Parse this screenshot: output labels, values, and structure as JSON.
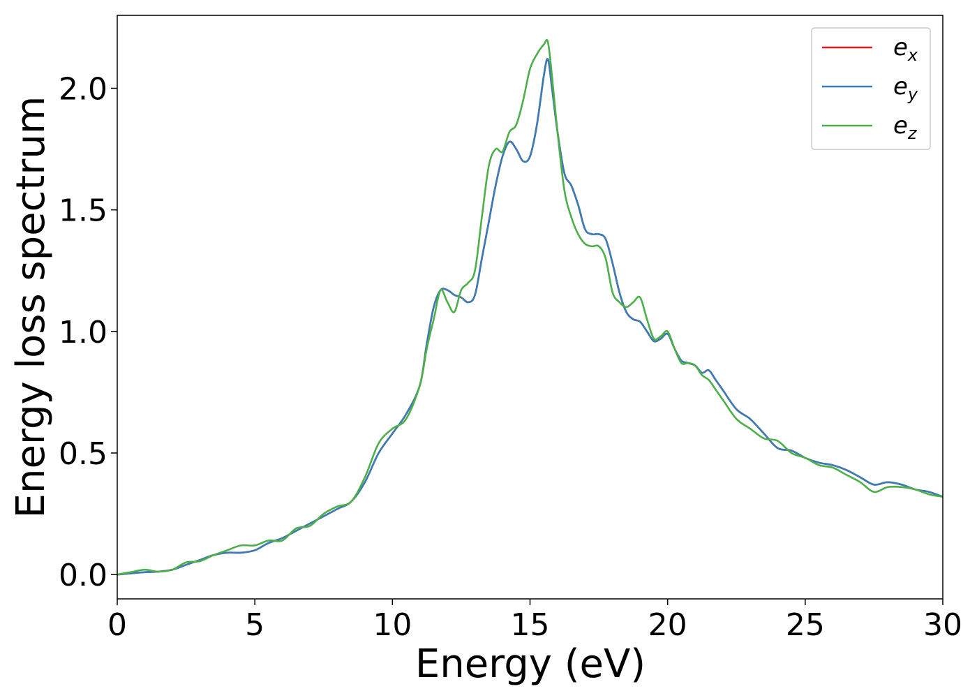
{
  "chart_data": {
    "type": "line",
    "title": "",
    "xlabel": "Energy (eV)",
    "ylabel": "Energy loss spectrum",
    "xlim": [
      0,
      30
    ],
    "ylim": [
      -0.1,
      2.3
    ],
    "x_ticks": [
      0,
      5,
      10,
      15,
      20,
      25,
      30
    ],
    "x_tick_labels": [
      "0",
      "5",
      "10",
      "15",
      "20",
      "25",
      "30"
    ],
    "y_ticks": [
      0.0,
      0.5,
      1.0,
      1.5,
      2.0
    ],
    "y_tick_labels": [
      "0.0",
      "0.5",
      "1.0",
      "1.5",
      "2.0"
    ],
    "grid": false,
    "legend_position": "top-right",
    "x": [
      0,
      0.5,
      1,
      1.5,
      2,
      2.5,
      3,
      3.5,
      4,
      4.5,
      5,
      5.5,
      6,
      6.5,
      7,
      7.5,
      8,
      8.5,
      9,
      9.5,
      10,
      10.5,
      11,
      11.25,
      11.5,
      11.75,
      12,
      12.25,
      12.5,
      12.75,
      13,
      13.25,
      13.5,
      13.75,
      14,
      14.25,
      14.5,
      14.75,
      15,
      15.25,
      15.5,
      15.65,
      15.8,
      16,
      16.25,
      16.5,
      16.75,
      17,
      17.25,
      17.5,
      17.75,
      18,
      18.25,
      18.5,
      18.75,
      19,
      19.25,
      19.5,
      19.75,
      20,
      20.25,
      20.5,
      20.75,
      21,
      21.25,
      21.5,
      21.75,
      22,
      22.5,
      23,
      23.5,
      24,
      24.5,
      25,
      25.5,
      26,
      26.5,
      27,
      27.5,
      28,
      28.5,
      29,
      29.5,
      30
    ],
    "series": [
      {
        "name": "e_x",
        "label_base": "e",
        "label_sub": "x",
        "color": "#e41a1c",
        "values": [
          0.0,
          0.005,
          0.01,
          0.012,
          0.02,
          0.04,
          0.06,
          0.08,
          0.09,
          0.09,
          0.1,
          0.13,
          0.15,
          0.18,
          0.21,
          0.24,
          0.27,
          0.3,
          0.38,
          0.5,
          0.58,
          0.66,
          0.78,
          0.95,
          1.1,
          1.17,
          1.17,
          1.15,
          1.14,
          1.12,
          1.15,
          1.3,
          1.45,
          1.6,
          1.72,
          1.78,
          1.75,
          1.7,
          1.72,
          1.85,
          2.05,
          2.12,
          2.0,
          1.82,
          1.65,
          1.6,
          1.52,
          1.42,
          1.4,
          1.4,
          1.38,
          1.28,
          1.16,
          1.08,
          1.05,
          1.04,
          1.0,
          0.96,
          0.97,
          0.99,
          0.93,
          0.88,
          0.87,
          0.86,
          0.83,
          0.84,
          0.8,
          0.76,
          0.68,
          0.64,
          0.58,
          0.52,
          0.51,
          0.48,
          0.46,
          0.45,
          0.43,
          0.4,
          0.37,
          0.38,
          0.37,
          0.35,
          0.34,
          0.32
        ]
      },
      {
        "name": "e_y",
        "label_base": "e",
        "label_sub": "y",
        "color": "#377eb8",
        "values": [
          0.0,
          0.005,
          0.01,
          0.012,
          0.02,
          0.04,
          0.06,
          0.08,
          0.09,
          0.09,
          0.1,
          0.13,
          0.15,
          0.18,
          0.21,
          0.24,
          0.27,
          0.3,
          0.38,
          0.5,
          0.58,
          0.66,
          0.78,
          0.95,
          1.1,
          1.17,
          1.17,
          1.15,
          1.14,
          1.12,
          1.15,
          1.3,
          1.45,
          1.6,
          1.72,
          1.78,
          1.75,
          1.7,
          1.72,
          1.85,
          2.05,
          2.12,
          2.0,
          1.82,
          1.65,
          1.6,
          1.52,
          1.42,
          1.4,
          1.4,
          1.38,
          1.28,
          1.16,
          1.08,
          1.05,
          1.04,
          1.0,
          0.96,
          0.97,
          0.99,
          0.93,
          0.88,
          0.87,
          0.86,
          0.83,
          0.84,
          0.8,
          0.76,
          0.68,
          0.64,
          0.58,
          0.52,
          0.51,
          0.48,
          0.46,
          0.45,
          0.43,
          0.4,
          0.37,
          0.38,
          0.37,
          0.35,
          0.34,
          0.32
        ]
      },
      {
        "name": "e_z",
        "label_base": "e",
        "label_sub": "z",
        "color": "#4daf4a",
        "values": [
          0.0,
          0.01,
          0.02,
          0.012,
          0.02,
          0.05,
          0.055,
          0.08,
          0.1,
          0.12,
          0.12,
          0.14,
          0.14,
          0.19,
          0.2,
          0.25,
          0.28,
          0.3,
          0.4,
          0.54,
          0.6,
          0.64,
          0.78,
          0.93,
          1.05,
          1.17,
          1.12,
          1.08,
          1.17,
          1.2,
          1.25,
          1.47,
          1.68,
          1.75,
          1.74,
          1.82,
          1.85,
          1.95,
          2.08,
          2.14,
          2.18,
          2.19,
          2.05,
          1.82,
          1.58,
          1.47,
          1.4,
          1.36,
          1.35,
          1.35,
          1.3,
          1.16,
          1.12,
          1.1,
          1.12,
          1.14,
          1.05,
          0.97,
          0.98,
          1.0,
          0.93,
          0.87,
          0.87,
          0.86,
          0.82,
          0.8,
          0.76,
          0.72,
          0.64,
          0.6,
          0.56,
          0.55,
          0.5,
          0.48,
          0.45,
          0.44,
          0.41,
          0.38,
          0.34,
          0.36,
          0.36,
          0.35,
          0.33,
          0.32
        ]
      }
    ]
  }
}
